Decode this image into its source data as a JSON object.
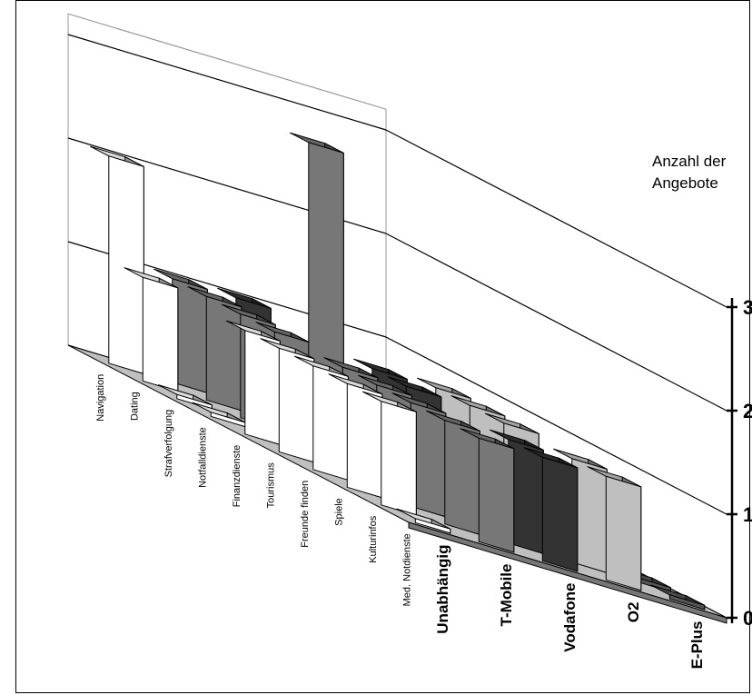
{
  "chart_data": {
    "type": "bar",
    "subtype": "3d-grouped-bar",
    "title": "",
    "ylabel_lines": [
      "Anzahl der",
      "Angebote"
    ],
    "ylim": [
      0,
      3
    ],
    "y_ticks": [
      "0",
      "1",
      "2",
      "3"
    ],
    "categories": [
      "Navigation",
      "Dating",
      "Strafverfolgung",
      "Notfalldienste",
      "Finanzdienste",
      "Tourismus",
      "Freunde finden",
      "Spiele",
      "Kulturinfos",
      "Med. Notdienste"
    ],
    "series": [
      {
        "name": "Unabhängig",
        "values": [
          2,
          1,
          0,
          0,
          1,
          1,
          1,
          1,
          1,
          0
        ]
      },
      {
        "name": "T-Mobile",
        "values": [
          1,
          1,
          1,
          1,
          3,
          1,
          1,
          1,
          1,
          1
        ]
      },
      {
        "name": "Vodafone",
        "values": [
          1,
          0,
          0,
          0,
          1,
          1,
          0,
          0,
          1,
          1
        ]
      },
      {
        "name": "O2",
        "values": [
          0,
          0,
          0,
          0,
          1,
          1,
          1,
          0,
          1,
          1
        ]
      },
      {
        "name": "E-Plus",
        "values": [
          0,
          0,
          0,
          0,
          0,
          0,
          0,
          0,
          0,
          0
        ]
      }
    ],
    "colors": [
      "#ffffff",
      "#777777",
      "#333333",
      "#bfbfbf",
      "#555555"
    ],
    "grid": true,
    "legend": "none"
  }
}
